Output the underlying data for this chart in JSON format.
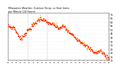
{
  "bg_color": "#ffffff",
  "temp_color": "#ff0000",
  "heat_color": "#ffa500",
  "title": "Milwaukee Weather: Outdoor Temp. vs Heat Index\nper Minute (24 Hours)",
  "vline_positions": [
    0.195,
    0.385
  ],
  "ylim": [
    10,
    72
  ],
  "yticks": [
    10,
    15,
    20,
    25,
    30,
    35,
    40,
    45,
    50,
    55,
    60,
    65,
    70
  ],
  "scatter_size": 1.2,
  "noise_seed": 7,
  "n_points": 200
}
